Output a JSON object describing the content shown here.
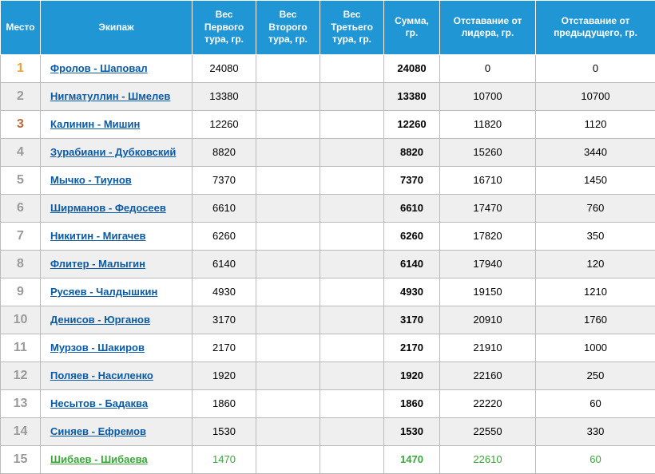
{
  "table": {
    "columns": {
      "place": "Место",
      "crew": "Экипаж",
      "w1": "Вес Первого тура, гр.",
      "w2": "Вес Второго тура, гр.",
      "w3": "Вес Третьего тура, гр.",
      "sum": "Сумма, гр.",
      "leader_gap": "Отставание от лидера, гр.",
      "prev_gap": "Отставание от предыдущего, гр."
    },
    "colors": {
      "header_bg": "#2196d4",
      "header_text": "#ffffff",
      "row_even": "#efefef",
      "row_odd": "#ffffff",
      "border": "#bbbbbb",
      "link": "#0b5aa5",
      "place1": "#e8a33c",
      "place2": "#9a9a9a",
      "place3": "#b96a3a",
      "place_rest": "#9a9a9a",
      "green": "#3aa63a"
    },
    "rows": [
      {
        "place": "1",
        "place_color": "#e8a33c",
        "crew": "Фролов - Шаповал",
        "w1": "24080",
        "w2": "",
        "w3": "",
        "sum": "24080",
        "leader_gap": "0",
        "prev_gap": "0"
      },
      {
        "place": "2",
        "place_color": "#9a9a9a",
        "crew": "Нигматуллин - Шмелев",
        "w1": "13380",
        "w2": "",
        "w3": "",
        "sum": "13380",
        "leader_gap": "10700",
        "prev_gap": "10700"
      },
      {
        "place": "3",
        "place_color": "#b96a3a",
        "crew": "Калинин - Мишин",
        "w1": "12260",
        "w2": "",
        "w3": "",
        "sum": "12260",
        "leader_gap": "11820",
        "prev_gap": "1120"
      },
      {
        "place": "4",
        "place_color": "#9a9a9a",
        "crew": "Зурабиани - Дубковский",
        "w1": "8820",
        "w2": "",
        "w3": "",
        "sum": "8820",
        "leader_gap": "15260",
        "prev_gap": "3440"
      },
      {
        "place": "5",
        "place_color": "#9a9a9a",
        "crew": "Мычко - Тиунов",
        "w1": "7370",
        "w2": "",
        "w3": "",
        "sum": "7370",
        "leader_gap": "16710",
        "prev_gap": "1450"
      },
      {
        "place": "6",
        "place_color": "#9a9a9a",
        "crew": "Ширманов - Федосеев",
        "w1": "6610",
        "w2": "",
        "w3": "",
        "sum": "6610",
        "leader_gap": "17470",
        "prev_gap": "760"
      },
      {
        "place": "7",
        "place_color": "#9a9a9a",
        "crew": "Никитин - Мигачев",
        "w1": "6260",
        "w2": "",
        "w3": "",
        "sum": "6260",
        "leader_gap": "17820",
        "prev_gap": "350"
      },
      {
        "place": "8",
        "place_color": "#9a9a9a",
        "crew": "Флитер - Малыгин",
        "w1": "6140",
        "w2": "",
        "w3": "",
        "sum": "6140",
        "leader_gap": "17940",
        "prev_gap": "120"
      },
      {
        "place": "9",
        "place_color": "#9a9a9a",
        "crew": "Русяев - Чалдышкин",
        "w1": "4930",
        "w2": "",
        "w3": "",
        "sum": "4930",
        "leader_gap": "19150",
        "prev_gap": "1210"
      },
      {
        "place": "10",
        "place_color": "#9a9a9a",
        "crew": "Денисов - Юрганов",
        "w1": "3170",
        "w2": "",
        "w3": "",
        "sum": "3170",
        "leader_gap": "20910",
        "prev_gap": "1760"
      },
      {
        "place": "11",
        "place_color": "#9a9a9a",
        "crew": "Мурзов - Шакиров",
        "w1": "2170",
        "w2": "",
        "w3": "",
        "sum": "2170",
        "leader_gap": "21910",
        "prev_gap": "1000"
      },
      {
        "place": "12",
        "place_color": "#9a9a9a",
        "crew": "Поляев - Насиленко",
        "w1": "1920",
        "w2": "",
        "w3": "",
        "sum": "1920",
        "leader_gap": "22160",
        "prev_gap": "250"
      },
      {
        "place": "13",
        "place_color": "#9a9a9a",
        "crew": "Несытов - Бадаква",
        "w1": "1860",
        "w2": "",
        "w3": "",
        "sum": "1860",
        "leader_gap": "22220",
        "prev_gap": "60"
      },
      {
        "place": "14",
        "place_color": "#9a9a9a",
        "crew": "Синяев - Ефремов",
        "w1": "1530",
        "w2": "",
        "w3": "",
        "sum": "1530",
        "leader_gap": "22550",
        "prev_gap": "330"
      },
      {
        "place": "15",
        "place_color": "#9a9a9a",
        "crew": "Шибаев - Шибаева",
        "crew_color": "#3aa63a",
        "w1": "1470",
        "w1_color": "#3aa63a",
        "w2": "",
        "w3": "",
        "sum": "1470",
        "sum_color": "#3aa63a",
        "leader_gap": "22610",
        "leader_gap_color": "#3aa63a",
        "prev_gap": "60",
        "prev_gap_color": "#3aa63a"
      }
    ]
  }
}
